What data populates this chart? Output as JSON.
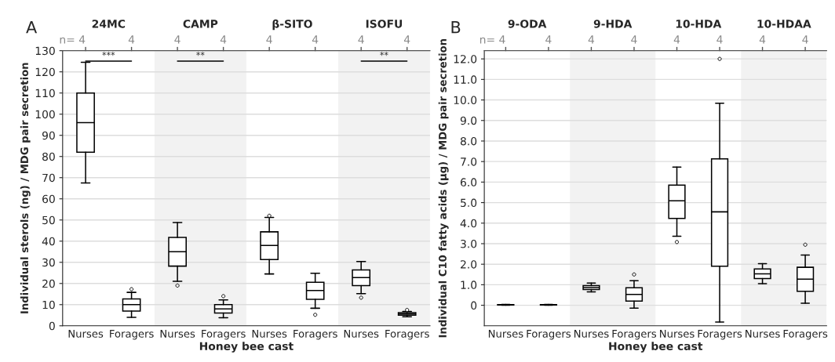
{
  "chart_data": [
    {
      "type": "box",
      "title": "A",
      "xlabel": "Honey bee cast",
      "ylabel": "Individual sterols (ng) / MDG pair secretion",
      "categories": [
        "Nurses",
        "Foragers",
        "Nurses",
        "Foragers",
        "Nurses",
        "Foragers",
        "Nurses",
        "Foragers"
      ],
      "boxes": [
        {
          "low": 67.5,
          "q1": 82,
          "median": 96,
          "q3": 110,
          "high": 124.5
        },
        {
          "low": 4,
          "q1": 7,
          "median": 10,
          "q3": 12.7,
          "high": 15.8,
          "outliers": [
            17.3
          ]
        },
        {
          "low": 21,
          "q1": 28.2,
          "median": 35,
          "q3": 41.8,
          "high": 48.8,
          "outliers": [
            19
          ]
        },
        {
          "low": 3.8,
          "q1": 6,
          "median": 8,
          "q3": 10,
          "high": 12.2,
          "outliers": [
            14
          ]
        },
        {
          "low": 24.5,
          "q1": 31.3,
          "median": 38,
          "q3": 44.4,
          "high": 51.2,
          "outliers": [
            52
          ]
        },
        {
          "low": 8.3,
          "q1": 12.5,
          "median": 16.7,
          "q3": 20.6,
          "high": 24.8,
          "outliers": [
            5.2
          ]
        },
        {
          "low": 15.2,
          "q1": 19,
          "median": 22.8,
          "q3": 26.4,
          "high": 30.4,
          "outliers": [
            13.3
          ]
        },
        {
          "low": 4.3,
          "q1": 5,
          "median": 5.6,
          "q3": 6.2,
          "high": 6.8,
          "outliers": [
            7.5
          ]
        }
      ],
      "ylim": [
        0,
        130
      ],
      "yticks": [
        0,
        10,
        20,
        30,
        40,
        50,
        60,
        70,
        80,
        90,
        100,
        110,
        120,
        130
      ],
      "annotations": [
        "24MC",
        "CAMP",
        "β-SITO",
        "ISOFU",
        "n= 4",
        "4",
        "4",
        "4",
        "4",
        "4",
        "4",
        "4",
        "***",
        "**",
        "**"
      ],
      "grid": "y"
    },
    {
      "type": "box",
      "title": "B",
      "xlabel": "Honey bee cast",
      "ylabel": "Individual C10 fatty acids (µg) / MDG pair secretion",
      "categories": [
        "Nurses",
        "Foragers",
        "Nurses",
        "Foragers",
        "Nurses",
        "Foragers",
        "Nurses",
        "Foragers"
      ],
      "boxes": [
        {
          "low": 0,
          "q1": 0.01,
          "median": 0.02,
          "q3": 0.03,
          "high": 0.04
        },
        {
          "low": 0,
          "q1": 0.01,
          "median": 0.02,
          "q3": 0.03,
          "high": 0.04
        },
        {
          "low": 0.65,
          "q1": 0.77,
          "median": 0.86,
          "q3": 0.96,
          "high": 1.08
        },
        {
          "low": -0.14,
          "q1": 0.2,
          "median": 0.53,
          "q3": 0.85,
          "high": 1.2,
          "outliers": [
            1.5
          ]
        },
        {
          "low": 3.36,
          "q1": 4.23,
          "median": 5.09,
          "q3": 5.85,
          "high": 6.73,
          "outliers": [
            3.08
          ]
        },
        {
          "low": -0.82,
          "q1": 1.9,
          "median": 4.55,
          "q3": 7.13,
          "high": 9.84,
          "outliers": [
            12.0
          ]
        },
        {
          "low": 1.05,
          "q1": 1.3,
          "median": 1.53,
          "q3": 1.77,
          "high": 2.03
        },
        {
          "low": 0.1,
          "q1": 0.68,
          "median": 1.27,
          "q3": 1.85,
          "high": 2.45,
          "outliers": [
            2.95
          ]
        }
      ],
      "ylim": [
        -1.0,
        12.4
      ],
      "yticks": [
        0,
        {
          "value": 1,
          "label": "1.0"
        },
        {
          "value": 2,
          "label": "2.0"
        },
        {
          "value": 3,
          "label": "3.0"
        },
        {
          "value": 4,
          "label": "4.0"
        },
        {
          "value": 5,
          "label": "5.0"
        },
        {
          "value": 6,
          "label": "6.0"
        },
        {
          "value": 7,
          "label": "7.0"
        },
        {
          "value": 8,
          "label": "8.0"
        },
        {
          "value": 9,
          "label": "9.0"
        },
        {
          "value": 10,
          "label": "10.0"
        },
        {
          "value": 11,
          "label": "11.0"
        },
        {
          "value": 12,
          "label": "12.0"
        }
      ],
      "annotations": [
        "9-ODA",
        "9-HDA",
        "10-HDA",
        "10-HDAA",
        "n= 4",
        "4",
        "4",
        "4",
        "4",
        "4",
        "4",
        "4"
      ],
      "grid": "y"
    }
  ]
}
